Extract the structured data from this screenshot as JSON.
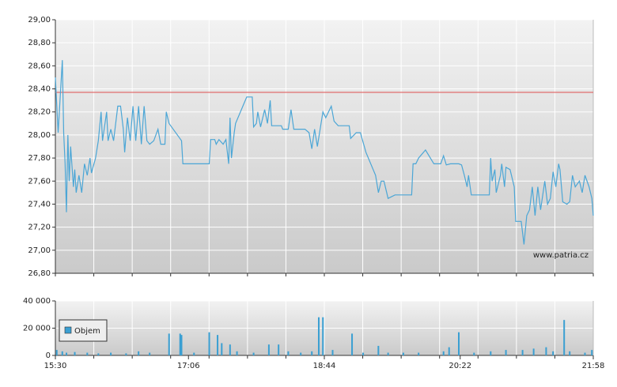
{
  "chart_data": [
    {
      "type": "line",
      "x": [
        "15:30",
        "15:31",
        "15:32",
        "15:35",
        "15:36",
        "15:37",
        "15:38",
        "15:39",
        "15:40",
        "15:41",
        "15:43",
        "15:44",
        "15:45",
        "15:47",
        "15:49",
        "15:51",
        "15:53",
        "15:55",
        "15:56",
        "15:59",
        "16:01",
        "16:03",
        "16:04",
        "16:07",
        "16:08",
        "16:10",
        "16:12",
        "16:15",
        "16:17",
        "16:19",
        "16:20",
        "16:22",
        "16:24",
        "16:26",
        "16:28",
        "16:30",
        "16:32",
        "16:34",
        "16:36",
        "16:38",
        "16:41",
        "16:44",
        "16:46",
        "16:49",
        "16:50",
        "16:52",
        "17:01",
        "17:02",
        "17:21",
        "17:22",
        "17:25",
        "17:26",
        "17:28",
        "17:31",
        "17:33",
        "17:35",
        "17:36",
        "17:37",
        "17:39",
        "17:40",
        "17:48",
        "17:52",
        "17:53",
        "17:55",
        "17:56",
        "17:58",
        "18:01",
        "18:03",
        "18:05",
        "18:06",
        "18:13",
        "18:14",
        "18:18",
        "18:20",
        "18:22",
        "18:30",
        "18:33",
        "18:35",
        "18:37",
        "18:39",
        "18:43",
        "18:45",
        "18:49",
        "18:51",
        "18:54",
        "19:02",
        "19:03",
        "19:07",
        "19:10",
        "19:14",
        "19:21",
        "19:23",
        "19:25",
        "19:27",
        "19:30",
        "19:35",
        "19:47",
        "19:48",
        "19:50",
        "19:52",
        "19:57",
        "20:03",
        "20:08",
        "20:10",
        "20:12",
        "20:15",
        "20:21",
        "20:23",
        "20:25",
        "20:27",
        "20:28",
        "20:30",
        "20:43",
        "20:44",
        "20:45",
        "20:47",
        "20:48",
        "20:51",
        "20:52",
        "20:54",
        "20:55",
        "20:58",
        "21:01",
        "21:02",
        "21:06",
        "21:08",
        "21:10",
        "21:12",
        "21:14",
        "21:16",
        "21:18",
        "21:20",
        "21:23",
        "21:25",
        "21:27",
        "21:29",
        "21:31",
        "21:33",
        "21:34",
        "21:36",
        "21:39",
        "21:41",
        "21:43",
        "21:45",
        "21:48",
        "21:50",
        "21:52",
        "21:55",
        "21:57",
        "21:58"
      ],
      "values": [
        28.5,
        28.25,
        28.02,
        28.65,
        28.02,
        27.75,
        27.33,
        28.0,
        27.6,
        27.9,
        27.55,
        27.7,
        27.5,
        27.65,
        27.5,
        27.75,
        27.65,
        27.8,
        27.67,
        27.8,
        27.95,
        28.2,
        27.95,
        28.2,
        27.95,
        28.05,
        27.95,
        28.25,
        28.25,
        28.05,
        27.85,
        28.15,
        27.95,
        28.25,
        27.95,
        28.25,
        27.92,
        28.25,
        27.95,
        27.92,
        27.95,
        28.05,
        27.92,
        27.92,
        28.2,
        28.1,
        27.95,
        27.75,
        27.75,
        27.96,
        27.96,
        27.92,
        27.96,
        27.92,
        27.96,
        27.75,
        28.15,
        27.8,
        28.02,
        28.1,
        28.33,
        28.33,
        28.07,
        28.1,
        28.2,
        28.07,
        28.22,
        28.1,
        28.3,
        28.08,
        28.08,
        28.05,
        28.05,
        28.22,
        28.05,
        28.05,
        28.02,
        27.88,
        28.05,
        27.9,
        28.2,
        28.15,
        28.25,
        28.12,
        28.08,
        28.08,
        27.97,
        28.02,
        28.02,
        27.85,
        27.65,
        27.5,
        27.6,
        27.6,
        27.45,
        27.48,
        27.48,
        27.75,
        27.75,
        27.8,
        27.87,
        27.75,
        27.75,
        27.82,
        27.74,
        27.75,
        27.75,
        27.74,
        27.65,
        27.55,
        27.65,
        27.48,
        27.48,
        27.8,
        27.6,
        27.7,
        27.5,
        27.65,
        27.75,
        27.55,
        27.72,
        27.7,
        27.55,
        27.25,
        27.25,
        27.05,
        27.3,
        27.35,
        27.55,
        27.3,
        27.55,
        27.35,
        27.6,
        27.4,
        27.45,
        27.68,
        27.55,
        27.75,
        27.7,
        27.42,
        27.4,
        27.42,
        27.65,
        27.55,
        27.6,
        27.5,
        27.65,
        27.55,
        27.45,
        27.3
      ],
      "color": "#4ba6d6",
      "xlim": [
        "15:30",
        "21:58"
      ],
      "ylim": [
        26.8,
        29
      ],
      "yticks": [
        {
          "value": 26.8,
          "label": "26,80"
        },
        {
          "value": 27,
          "label": "27,00"
        },
        {
          "value": 27.2,
          "label": "27,20"
        },
        {
          "value": 27.4,
          "label": "27,40"
        },
        {
          "value": 27.6,
          "label": "27,60"
        },
        {
          "value": 27.8,
          "label": "27,80"
        },
        {
          "value": 28,
          "label": "28,00"
        },
        {
          "value": 28.2,
          "label": "28,20"
        },
        {
          "value": 28.4,
          "label": "28,40"
        },
        {
          "value": 28.6,
          "label": "28,60"
        },
        {
          "value": 28.8,
          "label": "28,80"
        },
        {
          "value": 29,
          "label": "29,00"
        }
      ],
      "reference_line": {
        "value": 28.37,
        "color": "#e06060"
      },
      "watermark": "www.patria.cz",
      "grid": true
    },
    {
      "type": "bar",
      "x": [
        "15:31",
        "15:35",
        "15:38",
        "15:44",
        "15:53",
        "16:01",
        "16:10",
        "16:21",
        "16:30",
        "16:38",
        "16:52",
        "17:00",
        "17:01",
        "17:10",
        "17:21",
        "17:27",
        "17:30",
        "17:36",
        "17:41",
        "17:53",
        "18:04",
        "18:11",
        "18:18",
        "18:27",
        "18:35",
        "18:40",
        "18:43",
        "18:50",
        "19:04",
        "19:12",
        "19:23",
        "19:30",
        "19:41",
        "19:52",
        "20:10",
        "20:14",
        "20:21",
        "20:32",
        "20:44",
        "20:55",
        "21:07",
        "21:15",
        "21:24",
        "21:29",
        "21:37",
        "21:41",
        "21:52",
        "21:57"
      ],
      "series": [
        {
          "name": "Objem",
          "color": "#3a9fd2",
          "values": [
            4000,
            3000,
            2000,
            2500,
            2000,
            1500,
            2000,
            1500,
            3000,
            2000,
            16000,
            16000,
            15000,
            2000,
            17000,
            15000,
            9000,
            8000,
            3000,
            2000,
            8000,
            8000,
            3000,
            2000,
            3000,
            28000,
            28000,
            4000,
            16000,
            2000,
            7000,
            2000,
            2000,
            2000,
            3000,
            6000,
            17000,
            2000,
            3000,
            4000,
            4000,
            5000,
            6000,
            3000,
            26000,
            3000,
            2000,
            4000
          ]
        }
      ],
      "xlim": [
        "15:30",
        "21:58"
      ],
      "xticks": [
        "15:30",
        "17:06",
        "18:44",
        "20:22",
        "21:58"
      ],
      "ylim": [
        0,
        40000
      ],
      "yticks": [
        0,
        {
          "value": 20000,
          "label": "20 000"
        },
        {
          "value": 40000,
          "label": "40 000"
        }
      ],
      "grid": true
    }
  ]
}
